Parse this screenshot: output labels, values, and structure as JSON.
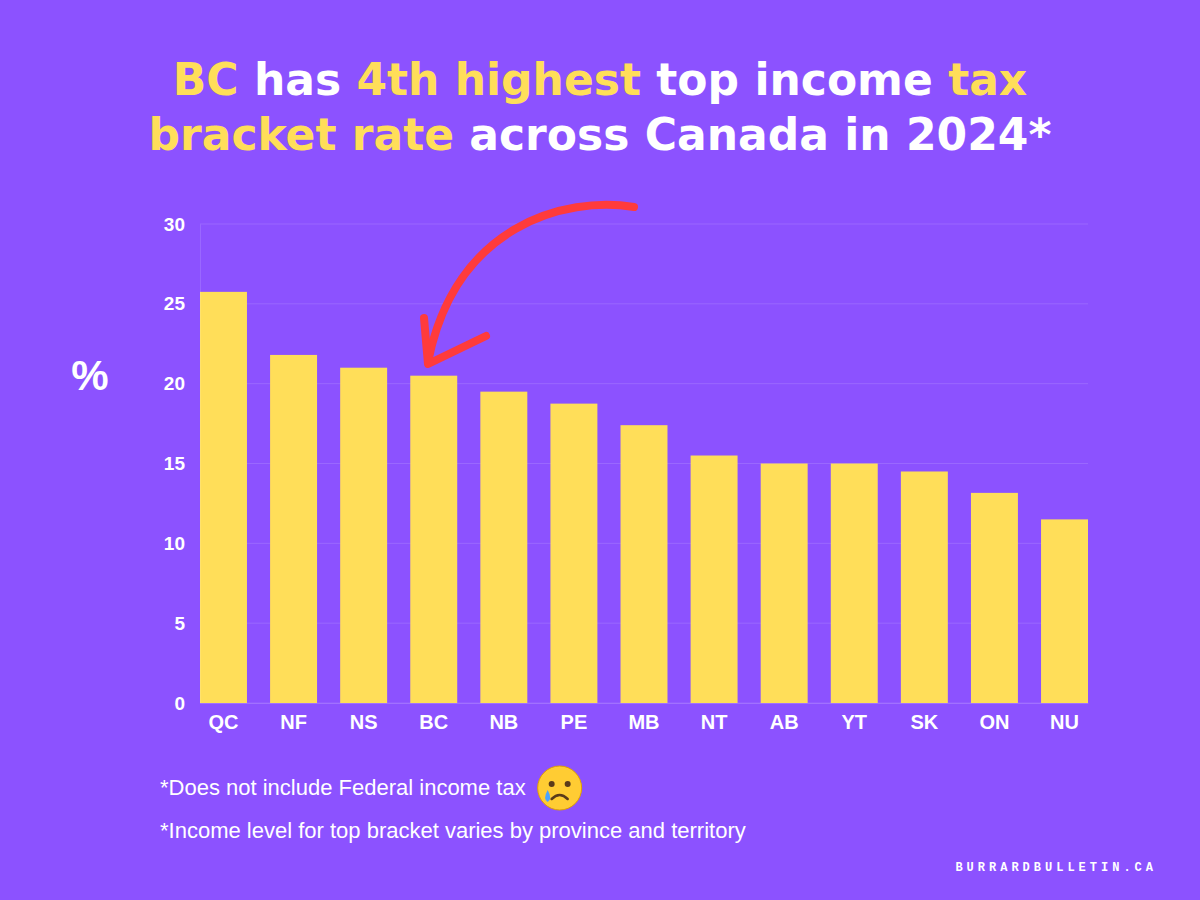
{
  "chart_data": {
    "type": "bar",
    "title": "BC has 4th highest top income tax bracket rate across Canada in 2024*",
    "y_label": "%",
    "categories": [
      "QC",
      "NF",
      "NS",
      "BC",
      "NB",
      "PE",
      "MB",
      "NT",
      "AB",
      "YT",
      "SK",
      "ON",
      "NU"
    ],
    "values": [
      25.75,
      21.8,
      21,
      20.5,
      19.5,
      18.75,
      17.4,
      15.5,
      15,
      15,
      14.5,
      13.16,
      11.5
    ],
    "color": "#ffde59",
    "ylim": [
      0,
      30
    ],
    "yticks": [
      0,
      5,
      10,
      15,
      20,
      25,
      30
    ],
    "grid": true,
    "annotations": [
      "*Does not include Federal income tax",
      "*Income level for top bracket varies by province and territory"
    ],
    "source": "BURRARDBULLETIN.CA"
  }
}
